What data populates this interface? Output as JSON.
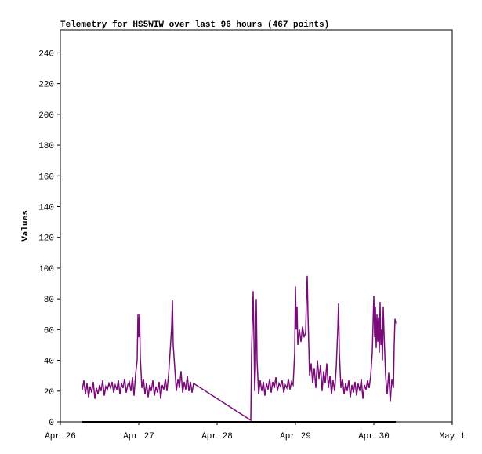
{
  "chart_data": {
    "type": "line",
    "title": "Telemetry for HS5WIW over last 96 hours (467 points)",
    "ylabel": "Values",
    "xlim": [
      26,
      31
    ],
    "xticks": [
      {
        "value": 26,
        "label": "Apr 26"
      },
      {
        "value": 27,
        "label": "Apr 27"
      },
      {
        "value": 28,
        "label": "Apr 28"
      },
      {
        "value": 29,
        "label": "Apr 29"
      },
      {
        "value": 30,
        "label": "Apr 30"
      },
      {
        "value": 31,
        "label": "May 1"
      }
    ],
    "ylim": [
      0,
      255
    ],
    "yticks": [
      0,
      20,
      40,
      60,
      80,
      100,
      120,
      140,
      160,
      180,
      200,
      220,
      240
    ],
    "grid": false,
    "series": [
      {
        "color": "#7a0a7a",
        "x": [
          26.28,
          26.3,
          26.32,
          26.34,
          26.36,
          26.38,
          26.4,
          26.42,
          26.44,
          26.46,
          26.48,
          26.5,
          26.52,
          26.54,
          26.56,
          26.58,
          26.6,
          26.62,
          26.64,
          26.66,
          26.68,
          26.7,
          26.72,
          26.74,
          26.76,
          26.78,
          26.8,
          26.82,
          26.84,
          26.86,
          26.88,
          26.9,
          26.92,
          26.94,
          26.96,
          26.98,
          26.99,
          27.0,
          27.01,
          27.02,
          27.04,
          27.06,
          27.08,
          27.1,
          27.12,
          27.14,
          27.16,
          27.18,
          27.2,
          27.22,
          27.24,
          27.26,
          27.28,
          27.3,
          27.32,
          27.34,
          27.36,
          27.38,
          27.4,
          27.42,
          27.43,
          27.44,
          27.46,
          27.48,
          27.5,
          27.52,
          27.54,
          27.56,
          27.58,
          27.6,
          27.62,
          27.64,
          27.66,
          27.68,
          27.7,
          28.43,
          28.44,
          28.46,
          28.47,
          28.48,
          28.49,
          28.5,
          28.51,
          28.53,
          28.55,
          28.57,
          28.59,
          28.61,
          28.63,
          28.65,
          28.67,
          28.69,
          28.71,
          28.73,
          28.75,
          28.77,
          28.79,
          28.81,
          28.83,
          28.85,
          28.87,
          28.89,
          28.91,
          28.93,
          28.95,
          28.97,
          28.99,
          29.0,
          29.01,
          29.02,
          29.03,
          29.05,
          29.07,
          29.09,
          29.11,
          29.13,
          29.14,
          29.15,
          29.16,
          29.18,
          29.2,
          29.22,
          29.24,
          29.26,
          29.28,
          29.3,
          29.32,
          29.34,
          29.36,
          29.38,
          29.4,
          29.42,
          29.44,
          29.46,
          29.48,
          29.5,
          29.52,
          29.54,
          29.55,
          29.56,
          29.58,
          29.6,
          29.62,
          29.64,
          29.66,
          29.68,
          29.7,
          29.72,
          29.74,
          29.76,
          29.78,
          29.8,
          29.82,
          29.84,
          29.86,
          29.88,
          29.9,
          29.92,
          29.94,
          29.96,
          29.98,
          30.0,
          30.01,
          30.02,
          30.03,
          30.04,
          30.05,
          30.06,
          30.07,
          30.08,
          30.09,
          30.1,
          30.11,
          30.12,
          30.13,
          30.15,
          30.17,
          30.19,
          30.21,
          30.23,
          30.25,
          30.26,
          30.27,
          30.28
        ],
        "values": [
          21,
          27,
          18,
          25,
          16,
          23,
          19,
          26,
          15,
          22,
          18,
          24,
          20,
          27,
          17,
          23,
          21,
          25,
          22,
          26,
          19,
          24,
          21,
          27,
          18,
          25,
          22,
          28,
          19,
          24,
          26,
          20,
          29,
          17,
          31,
          40,
          70,
          55,
          70,
          42,
          22,
          28,
          18,
          25,
          16,
          24,
          20,
          27,
          17,
          23,
          19,
          26,
          15,
          24,
          21,
          28,
          20,
          30,
          45,
          62,
          79,
          50,
          35,
          20,
          28,
          22,
          33,
          19,
          26,
          21,
          30,
          20,
          26,
          19,
          25,
          1,
          45,
          85,
          55,
          20,
          35,
          80,
          40,
          18,
          27,
          20,
          26,
          17,
          25,
          21,
          28,
          19,
          26,
          22,
          29,
          20,
          25,
          23,
          27,
          19,
          24,
          22,
          28,
          21,
          26,
          24,
          45,
          88,
          60,
          75,
          50,
          60,
          52,
          62,
          55,
          58,
          80,
          95,
          70,
          30,
          38,
          25,
          35,
          22,
          40,
          28,
          37,
          20,
          33,
          25,
          38,
          22,
          30,
          18,
          27,
          20,
          35,
          60,
          77,
          45,
          22,
          28,
          18,
          25,
          20,
          27,
          16,
          24,
          19,
          26,
          17,
          25,
          20,
          28,
          15,
          24,
          21,
          27,
          22,
          30,
          45,
          82,
          55,
          75,
          48,
          70,
          52,
          68,
          45,
          78,
          50,
          60,
          40,
          75,
          58,
          30,
          18,
          32,
          13,
          28,
          22,
          50,
          67,
          64
        ]
      },
      {
        "color": "#000000",
        "x": [
          26.28,
          30.28
        ],
        "values": [
          0,
          0
        ]
      }
    ]
  }
}
